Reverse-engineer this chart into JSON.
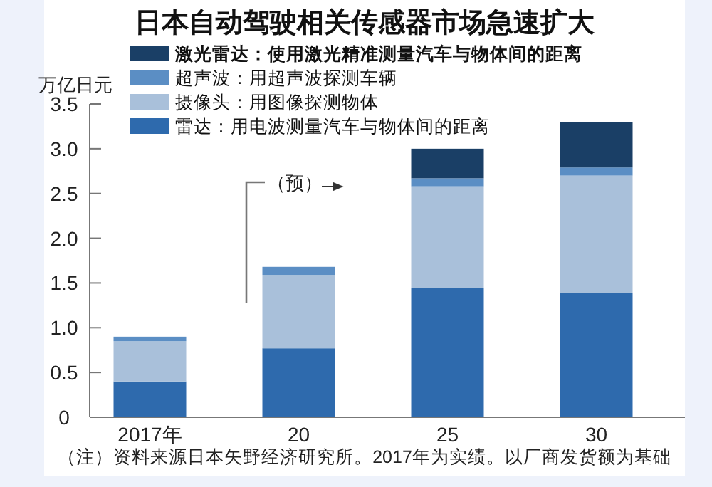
{
  "chart_data": {
    "type": "bar",
    "title": "日本自动驾驶相关传感器市场急速扩大",
    "ylabel": "万亿日元",
    "categories": [
      "2017年",
      "20",
      "25",
      "30"
    ],
    "stacked": true,
    "series": [
      {
        "name": "雷达：用电波测量汽车与物体间的距离",
        "color": "#2e6aad",
        "values": [
          0.4,
          0.77,
          1.44,
          1.39
        ]
      },
      {
        "name": "摄像头：用图像探测物体",
        "color": "#a9c0da",
        "values": [
          0.45,
          0.82,
          1.14,
          1.31
        ]
      },
      {
        "name": "超声波：用超声波探测车辆",
        "color": "#5b8ec4",
        "values": [
          0.05,
          0.09,
          0.09,
          0.09
        ]
      },
      {
        "name": "激光雷达：使用激光精准测量汽车与物体间的距离",
        "color": "#1a3f66",
        "values": [
          0,
          0,
          0.33,
          0.51
        ]
      }
    ],
    "ylim": [
      0,
      3.5
    ],
    "yticks": [
      0,
      {
        "value": 0.5,
        "label": "0.5"
      },
      {
        "value": 1,
        "label": "1.0"
      },
      {
        "value": 1.5,
        "label": "1.5"
      },
      {
        "value": 2,
        "label": "2.0"
      },
      {
        "value": 2.5,
        "label": "2.5"
      },
      {
        "value": 3,
        "label": "3.0"
      },
      {
        "value": 3.5,
        "label": "3.5"
      }
    ],
    "legend": "top left",
    "grid": false,
    "annotations": [
      "（预）",
      "（注）资料来源日本矢野经济研究所。2017年为实绩。以厂商发货额为基础"
    ]
  }
}
